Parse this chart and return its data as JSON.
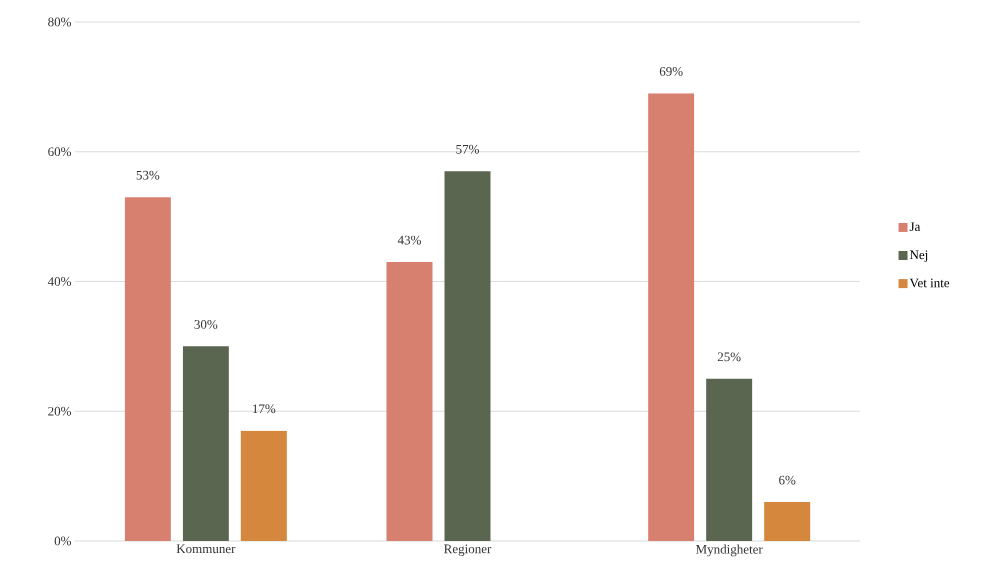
{
  "chart_data": {
    "type": "bar",
    "categories": [
      "Kommuner",
      "Regioner",
      "Myndigheter"
    ],
    "series": [
      {
        "name": "Ja",
        "color": "#d88070",
        "values": [
          53,
          43,
          69
        ],
        "value_labels": [
          "53%",
          "43%",
          "69%"
        ]
      },
      {
        "name": "Nej",
        "color": "#5a6650",
        "values": [
          30,
          57,
          25
        ],
        "value_labels": [
          "30%",
          "57%",
          "25%"
        ]
      },
      {
        "name": "Vet inte",
        "color": "#d5873e",
        "values": [
          17,
          null,
          6
        ],
        "value_labels": [
          "17%",
          null,
          "6%"
        ]
      }
    ],
    "ylim": [
      0,
      80
    ],
    "yticks": [
      {
        "value": 0,
        "label": "0%"
      },
      {
        "value": 20,
        "label": "20%"
      },
      {
        "value": 40,
        "label": "40%"
      },
      {
        "value": 60,
        "label": "60%"
      },
      {
        "value": 80,
        "label": "80%"
      }
    ],
    "grid": "y",
    "legend": "right"
  }
}
